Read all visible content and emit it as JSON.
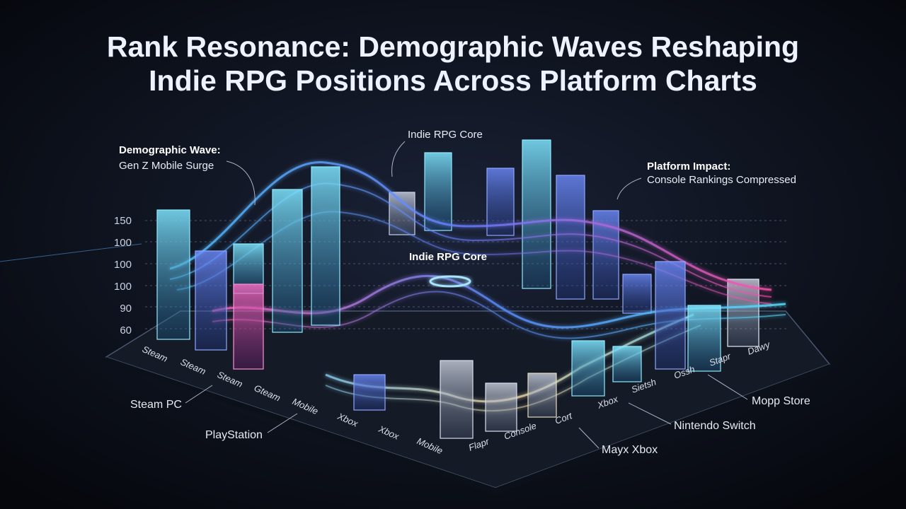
{
  "header": {
    "title_lines": [
      "Rank Resonance: Demographic Waves Reshaping",
      "Indie RPG Positions Across Platform Charts"
    ]
  },
  "annotations": {
    "demographic_wave": {
      "label": "Demographic Wave:",
      "text": "Gen Z Mobile Surge"
    },
    "core_top": "Indie RPG Core",
    "core_center": "Indie RPG Core",
    "platform_impact": {
      "label": "Platform Impact:",
      "text": "Console Rankings Compressed"
    }
  },
  "axis_labels": [
    "150",
    "100",
    "100",
    "100",
    "90",
    "60"
  ],
  "floor_labels_left": [
    "Steam",
    "Steam",
    "Steam",
    "Gteam",
    "Mobile",
    "Xbox",
    "Xbox",
    "Mobile"
  ],
  "floor_labels_right": [
    "Flapr",
    "Console",
    "Cort",
    "Xbox",
    "Sietsh",
    "Ossh",
    "Stapr",
    "Dawy"
  ],
  "callouts": [
    "Steam PC",
    "PlayStation",
    "Mayx Xbox",
    "Nintendo Switch",
    "Mopp Store"
  ]
}
